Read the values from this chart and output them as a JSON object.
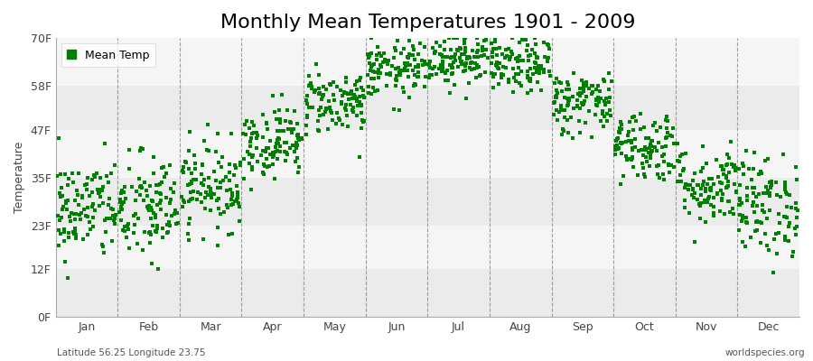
{
  "title": "Monthly Mean Temperatures 1901 - 2009",
  "ylabel": "Temperature",
  "xlabel_bottom_left": "Latitude 56.25 Longitude 23.75",
  "xlabel_bottom_right": "worldspecies.org",
  "legend_label": "Mean Temp",
  "dot_color": "#008000",
  "background_color": "#ffffff",
  "band_colors_h": [
    "#ebebeb",
    "#f5f5f5"
  ],
  "ytick_labels": [
    "0F",
    "12F",
    "23F",
    "35F",
    "47F",
    "58F",
    "70F"
  ],
  "ytick_values": [
    0,
    12,
    23,
    35,
    47,
    58,
    70
  ],
  "months": [
    "Jan",
    "Feb",
    "Mar",
    "Apr",
    "May",
    "Jun",
    "Jul",
    "Aug",
    "Sep",
    "Oct",
    "Nov",
    "Dec"
  ],
  "n_years": 109,
  "mean_temps_F": [
    27,
    27,
    33,
    44,
    54,
    62,
    65,
    63,
    54,
    43,
    33,
    28
  ],
  "std_temps_F": [
    6.5,
    7.0,
    5.5,
    4.5,
    4.0,
    3.5,
    3.5,
    3.5,
    4.0,
    4.5,
    5.0,
    6.5
  ],
  "ylim": [
    0,
    70
  ],
  "title_fontsize": 16,
  "axis_fontsize": 9,
  "tick_fontsize": 9,
  "legend_fontsize": 9,
  "marker_size": 7
}
